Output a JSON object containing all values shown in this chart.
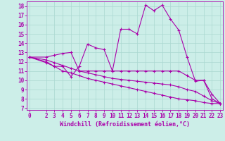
{
  "xlabel": "Windchill (Refroidissement éolien,°C)",
  "background_color": "#cceee8",
  "line_color": "#aa00aa",
  "grid_color": "#aad8d0",
  "x_ticks": [
    0,
    2,
    3,
    4,
    5,
    6,
    7,
    8,
    9,
    10,
    11,
    12,
    13,
    14,
    15,
    16,
    17,
    18,
    19,
    20,
    21,
    22,
    23
  ],
  "y_ticks": [
    7,
    8,
    9,
    10,
    11,
    12,
    13,
    14,
    15,
    16,
    17,
    18
  ],
  "ylim": [
    6.8,
    18.5
  ],
  "xlim": [
    -0.3,
    23.3
  ],
  "series": [
    {
      "x": [
        0,
        2,
        3,
        4,
        5,
        6,
        7,
        8,
        9,
        10,
        11,
        12,
        13,
        14,
        15,
        16,
        17,
        18,
        19,
        20,
        21,
        22,
        23
      ],
      "y": [
        12.5,
        12.0,
        11.5,
        11.5,
        10.4,
        11.5,
        13.9,
        13.5,
        13.3,
        11.0,
        15.5,
        15.5,
        15.0,
        18.1,
        17.5,
        18.1,
        16.6,
        15.4,
        12.5,
        9.9,
        10.0,
        8.0,
        7.5
      ]
    },
    {
      "x": [
        0,
        2,
        3,
        4,
        5,
        6,
        7,
        8,
        9,
        10,
        11,
        12,
        13,
        14,
        15,
        16,
        17,
        18,
        19,
        20,
        21,
        22,
        23
      ],
      "y": [
        12.5,
        12.5,
        12.7,
        12.9,
        13.0,
        11.0,
        11.0,
        11.0,
        11.0,
        11.0,
        11.0,
        11.0,
        11.0,
        11.0,
        11.0,
        11.0,
        11.0,
        11.0,
        10.5,
        10.0,
        10.0,
        8.5,
        7.5
      ]
    },
    {
      "x": [
        0,
        2,
        3,
        4,
        5,
        6,
        7,
        8,
        9,
        10,
        11,
        12,
        13,
        14,
        15,
        16,
        17,
        18,
        19,
        20,
        21,
        22,
        23
      ],
      "y": [
        12.5,
        12.2,
        11.9,
        11.6,
        11.3,
        11.0,
        10.8,
        10.6,
        10.4,
        10.2,
        10.1,
        10.0,
        9.9,
        9.8,
        9.7,
        9.6,
        9.5,
        9.3,
        9.0,
        8.8,
        8.3,
        7.8,
        7.5
      ]
    },
    {
      "x": [
        0,
        2,
        3,
        4,
        5,
        6,
        7,
        8,
        9,
        10,
        11,
        12,
        13,
        14,
        15,
        16,
        17,
        18,
        19,
        20,
        21,
        22,
        23
      ],
      "y": [
        12.5,
        11.9,
        11.5,
        11.0,
        10.8,
        10.5,
        10.2,
        10.0,
        9.8,
        9.6,
        9.4,
        9.2,
        9.0,
        8.8,
        8.6,
        8.4,
        8.2,
        8.0,
        7.9,
        7.8,
        7.6,
        7.5,
        7.5
      ]
    }
  ]
}
